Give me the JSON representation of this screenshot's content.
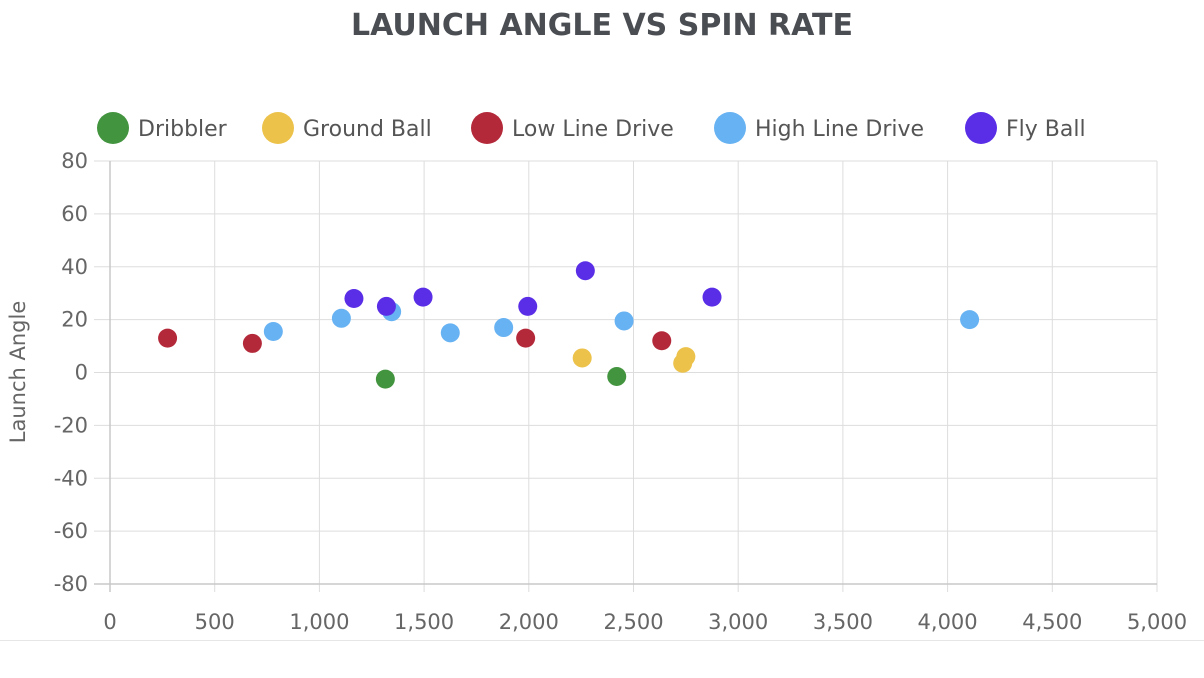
{
  "chart_data": {
    "type": "scatter",
    "title": "LAUNCH ANGLE VS SPIN RATE",
    "xlabel": "",
    "ylabel": "Launch Angle",
    "xlim": [
      0,
      5000
    ],
    "ylim": [
      -80,
      80
    ],
    "x_ticks": [
      0,
      500,
      1000,
      1500,
      2000,
      2500,
      3000,
      3500,
      4000,
      4500,
      5000
    ],
    "x_tick_labels": [
      "0",
      "500",
      "1,000",
      "1,500",
      "2,000",
      "2,500",
      "3,000",
      "3,500",
      "4,000",
      "4,500",
      "5,000"
    ],
    "y_ticks": [
      80,
      60,
      40,
      20,
      0,
      -20,
      -40,
      -60,
      -80
    ],
    "y_tick_labels": [
      "80",
      "60",
      "40",
      "20",
      "0",
      "-20",
      "-40",
      "-60",
      "-80"
    ],
    "grid": true,
    "legend_position": "top-left",
    "series": [
      {
        "name": "Dribbler",
        "color": "#43943f",
        "points": [
          [
            1315,
            -2.5
          ],
          [
            2420,
            -1.5
          ]
        ]
      },
      {
        "name": "Ground Ball",
        "color": "#ecc24a",
        "points": [
          [
            2255,
            5.5
          ],
          [
            2735,
            3.5
          ],
          [
            2750,
            6
          ]
        ]
      },
      {
        "name": "Low Line Drive",
        "color": "#b4293a",
        "points": [
          [
            275,
            13
          ],
          [
            680,
            11
          ],
          [
            1985,
            13
          ],
          [
            2635,
            12
          ]
        ]
      },
      {
        "name": "High Line Drive",
        "color": "#67b2f2",
        "points": [
          [
            780,
            15.5
          ],
          [
            1105,
            20.5
          ],
          [
            1345,
            23
          ],
          [
            1625,
            15
          ],
          [
            1880,
            17
          ],
          [
            2455,
            19.5
          ],
          [
            4105,
            20
          ]
        ]
      },
      {
        "name": "Fly Ball",
        "color": "#5a2ee6",
        "points": [
          [
            1165,
            28
          ],
          [
            1320,
            25
          ],
          [
            1495,
            28.5
          ],
          [
            1995,
            25
          ],
          [
            2270,
            38.5
          ],
          [
            2875,
            28.5
          ]
        ]
      }
    ]
  }
}
